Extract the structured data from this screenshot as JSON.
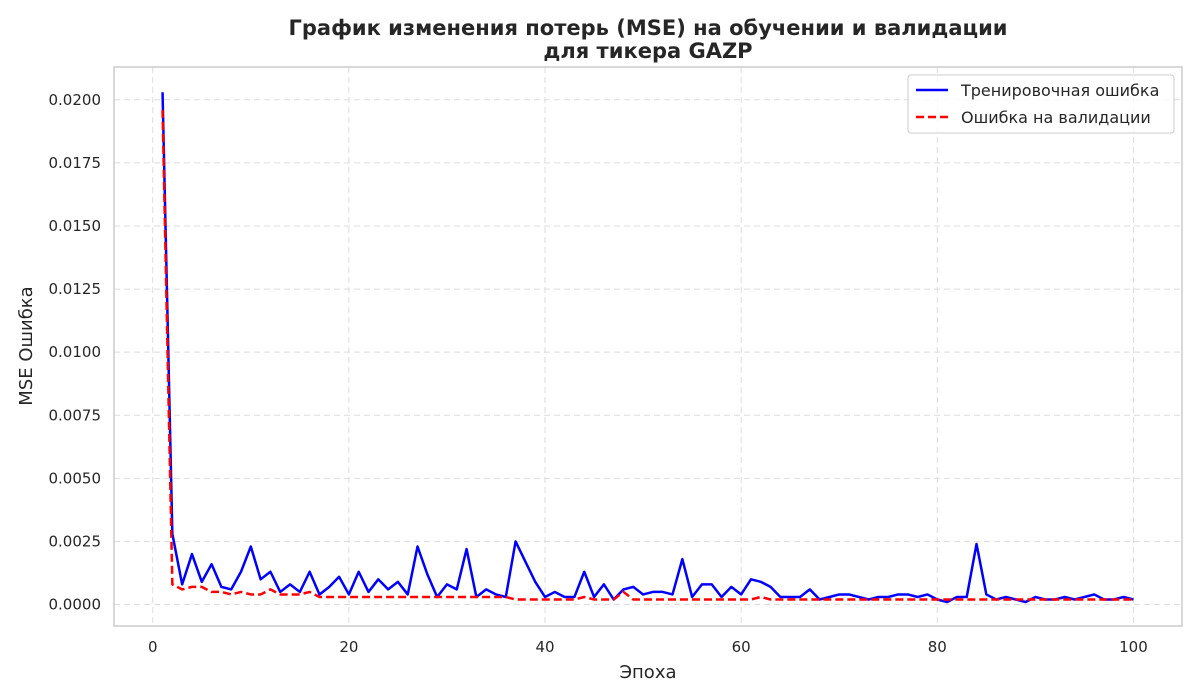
{
  "chart_data": {
    "type": "line",
    "title_lines": [
      "График изменения потерь (MSE) на обучении и валидации",
      "для тикера GAZP"
    ],
    "xlabel": "Эпоха",
    "ylabel": "MSE Ошибка",
    "xlim": [
      -3.95,
      104.95
    ],
    "ylim": [
      -0.00085,
      0.0213
    ],
    "xticks": [
      0,
      20,
      40,
      60,
      80,
      100
    ],
    "xtick_labels": [
      "0",
      "20",
      "40",
      "60",
      "80",
      "100"
    ],
    "yticks": [
      0.0,
      0.0025,
      0.005,
      0.0075,
      0.01,
      0.0125,
      0.015,
      0.0175,
      0.02
    ],
    "ytick_labels": [
      "0.0000",
      "0.0025",
      "0.0050",
      "0.0075",
      "0.0100",
      "0.0125",
      "0.0150",
      "0.0175",
      "0.0200"
    ],
    "grid": true,
    "grid_style": "dashed",
    "legend_position": "top-right",
    "x": [
      1,
      2,
      3,
      4,
      5,
      6,
      7,
      8,
      9,
      10,
      11,
      12,
      13,
      14,
      15,
      16,
      17,
      18,
      19,
      20,
      21,
      22,
      23,
      24,
      25,
      26,
      27,
      28,
      29,
      30,
      31,
      32,
      33,
      34,
      35,
      36,
      37,
      38,
      39,
      40,
      41,
      42,
      43,
      44,
      45,
      46,
      47,
      48,
      49,
      50,
      51,
      52,
      53,
      54,
      55,
      56,
      57,
      58,
      59,
      60,
      61,
      62,
      63,
      64,
      65,
      66,
      67,
      68,
      69,
      70,
      71,
      72,
      73,
      74,
      75,
      76,
      77,
      78,
      79,
      80,
      81,
      82,
      83,
      84,
      85,
      86,
      87,
      88,
      89,
      90,
      91,
      92,
      93,
      94,
      95,
      96,
      97,
      98,
      99,
      100
    ],
    "series": [
      {
        "name": "Тренировочная ошибка",
        "color": "#0000ff",
        "style": "solid",
        "values": [
          0.0203,
          0.0028,
          0.0008,
          0.002,
          0.0009,
          0.0016,
          0.0007,
          0.0006,
          0.0013,
          0.0023,
          0.001,
          0.0013,
          0.0005,
          0.0008,
          0.0005,
          0.0013,
          0.0004,
          0.0007,
          0.0011,
          0.0004,
          0.0013,
          0.0005,
          0.001,
          0.0006,
          0.0009,
          0.0004,
          0.0023,
          0.0012,
          0.0003,
          0.0008,
          0.0006,
          0.0022,
          0.0003,
          0.0006,
          0.0004,
          0.0003,
          0.0025,
          0.0017,
          0.0009,
          0.0003,
          0.0005,
          0.0003,
          0.0003,
          0.0013,
          0.0003,
          0.0008,
          0.0002,
          0.0006,
          0.0007,
          0.0004,
          0.0005,
          0.0005,
          0.0004,
          0.0018,
          0.0003,
          0.0008,
          0.0008,
          0.0003,
          0.0007,
          0.0004,
          0.001,
          0.0009,
          0.0007,
          0.0003,
          0.0003,
          0.0003,
          0.0006,
          0.0002,
          0.0003,
          0.0004,
          0.0004,
          0.0003,
          0.0002,
          0.0003,
          0.0003,
          0.0004,
          0.0004,
          0.0003,
          0.0004,
          0.0002,
          0.0001,
          0.0003,
          0.0003,
          0.0024,
          0.0004,
          0.0002,
          0.0003,
          0.0002,
          0.0001,
          0.0003,
          0.0002,
          0.0002,
          0.0003,
          0.0002,
          0.0003,
          0.0004,
          0.0002,
          0.0002,
          0.0003,
          0.0002
        ]
      },
      {
        "name": "Ошибка на валидации",
        "color": "#ff0000",
        "style": "dashed",
        "values": [
          0.0196,
          0.0008,
          0.0006,
          0.0007,
          0.0007,
          0.0005,
          0.0005,
          0.0004,
          0.0005,
          0.0004,
          0.0004,
          0.0006,
          0.0004,
          0.0004,
          0.0004,
          0.0005,
          0.0003,
          0.0003,
          0.0003,
          0.0003,
          0.0003,
          0.0003,
          0.0003,
          0.0003,
          0.0003,
          0.0003,
          0.0003,
          0.0003,
          0.0003,
          0.0003,
          0.0003,
          0.0003,
          0.0003,
          0.0003,
          0.0003,
          0.0003,
          0.0002,
          0.0002,
          0.0002,
          0.0002,
          0.0002,
          0.0002,
          0.0002,
          0.0003,
          0.0002,
          0.0002,
          0.0002,
          0.0005,
          0.0002,
          0.0002,
          0.0002,
          0.0002,
          0.0002,
          0.0002,
          0.0002,
          0.0002,
          0.0002,
          0.0002,
          0.0002,
          0.0002,
          0.0002,
          0.0003,
          0.0002,
          0.0002,
          0.0002,
          0.0002,
          0.0002,
          0.0002,
          0.0002,
          0.0002,
          0.0002,
          0.0002,
          0.0002,
          0.0002,
          0.0002,
          0.0002,
          0.0002,
          0.0002,
          0.0002,
          0.0002,
          0.0002,
          0.0002,
          0.0002,
          0.0002,
          0.0002,
          0.0002,
          0.0002,
          0.0002,
          0.0002,
          0.0002,
          0.0002,
          0.0002,
          0.0002,
          0.0002,
          0.0002,
          0.0002,
          0.0002,
          0.0002,
          0.0002,
          0.0002
        ]
      }
    ],
    "colors": {
      "grid": "#dddddd",
      "frame": "#cccccc",
      "text": "#262626"
    }
  }
}
